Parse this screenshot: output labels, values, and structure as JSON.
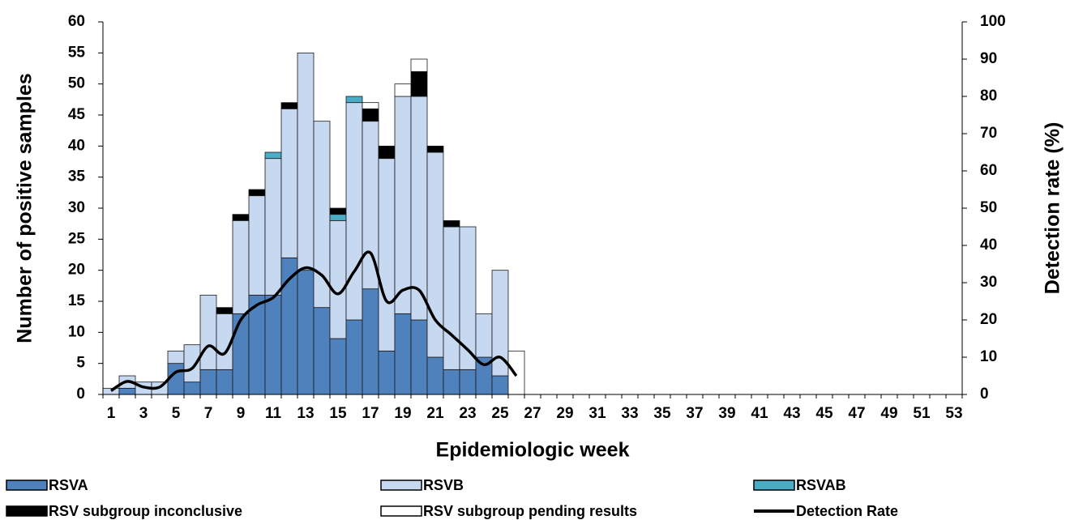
{
  "chart_data": {
    "type": "bar",
    "stacked": true,
    "x_title": "Epidemiologic week",
    "y_title": "Number of positive samples",
    "y2_title": "Detection rate (%)",
    "categories": [
      1,
      null,
      3,
      null,
      5,
      null,
      7,
      null,
      9,
      null,
      11,
      null,
      13,
      null,
      15,
      null,
      17,
      null,
      19,
      null,
      21,
      null,
      23,
      null,
      25,
      null,
      27,
      null,
      29,
      null,
      31,
      null,
      33,
      null,
      35,
      null,
      37,
      null,
      39,
      null,
      41,
      null,
      43,
      null,
      45,
      null,
      47,
      null,
      49,
      null,
      51,
      null,
      53
    ],
    "ylim": [
      0,
      60
    ],
    "yticks": [
      0,
      5,
      10,
      15,
      20,
      25,
      30,
      35,
      40,
      45,
      50,
      55,
      60
    ],
    "y2lim": [
      0,
      100
    ],
    "y2ticks": [
      0,
      10,
      20,
      30,
      40,
      50,
      60,
      70,
      80,
      90,
      100
    ],
    "series": [
      {
        "name": "RSVA",
        "color": "#4f81bd",
        "values": [
          0,
          1,
          0,
          0,
          5,
          2,
          4,
          4,
          13,
          16,
          16,
          22,
          20,
          14,
          9,
          12,
          17,
          7,
          13,
          12,
          6,
          4,
          4,
          6,
          3,
          0,
          null,
          null,
          null,
          null,
          null,
          null,
          null,
          null,
          null,
          null,
          null,
          null,
          null,
          null,
          null,
          null,
          null,
          null,
          null,
          null,
          null,
          null,
          null,
          null,
          null,
          null,
          null
        ]
      },
      {
        "name": "RSVB",
        "color": "#c6d9f1",
        "values": [
          1,
          2,
          2,
          2,
          2,
          6,
          12,
          9,
          15,
          16,
          22,
          24,
          35,
          30,
          19,
          35,
          27,
          31,
          35,
          36,
          33,
          23,
          23,
          7,
          17,
          0,
          null,
          null,
          null,
          null,
          null,
          null,
          null,
          null,
          null,
          null,
          null,
          null,
          null,
          null,
          null,
          null,
          null,
          null,
          null,
          null,
          null,
          null,
          null,
          null,
          null,
          null,
          null
        ]
      },
      {
        "name": "RSVAB",
        "color": "#4bacc6",
        "values": [
          0,
          0,
          0,
          0,
          0,
          0,
          0,
          0,
          0,
          0,
          1,
          0,
          0,
          0,
          1,
          1,
          0,
          0,
          0,
          0,
          0,
          0,
          0,
          0,
          0,
          0,
          null,
          null,
          null,
          null,
          null,
          null,
          null,
          null,
          null,
          null,
          null,
          null,
          null,
          null,
          null,
          null,
          null,
          null,
          null,
          null,
          null,
          null,
          null,
          null,
          null,
          null,
          null
        ]
      },
      {
        "name": "RSV subgroup inconclusive",
        "color": "#000000",
        "values": [
          0,
          0,
          0,
          0,
          0,
          0,
          0,
          1,
          1,
          1,
          0,
          1,
          0,
          0,
          1,
          0,
          2,
          2,
          0,
          4,
          1,
          1,
          0,
          0,
          0,
          0,
          null,
          null,
          null,
          null,
          null,
          null,
          null,
          null,
          null,
          null,
          null,
          null,
          null,
          null,
          null,
          null,
          null,
          null,
          null,
          null,
          null,
          null,
          null,
          null,
          null,
          null,
          null
        ]
      },
      {
        "name": "RSV subgroup pending results",
        "color": "#ffffff",
        "values": [
          0,
          0,
          0,
          0,
          0,
          0,
          0,
          0,
          0,
          0,
          0,
          0,
          0,
          0,
          0,
          0,
          1,
          0,
          2,
          2,
          0,
          0,
          0,
          0,
          0,
          7,
          null,
          null,
          null,
          null,
          null,
          null,
          null,
          null,
          null,
          null,
          null,
          null,
          null,
          null,
          null,
          null,
          null,
          null,
          null,
          null,
          null,
          null,
          null,
          null,
          null,
          null,
          null
        ]
      },
      {
        "name": "Detection Rate",
        "type": "line",
        "axis": "y2",
        "color": "#000000",
        "values": [
          1,
          3.5,
          2,
          2,
          6,
          7,
          13,
          11,
          20,
          24,
          26,
          31,
          34,
          32,
          27,
          33,
          38,
          25,
          28,
          28,
          20,
          16,
          12,
          8,
          10,
          5,
          null,
          null,
          null,
          null,
          null,
          null,
          null,
          null,
          null,
          null,
          null,
          null,
          null,
          null,
          null,
          null,
          null,
          null,
          null,
          null,
          null,
          null,
          null,
          null,
          null,
          null,
          null
        ]
      }
    ]
  }
}
